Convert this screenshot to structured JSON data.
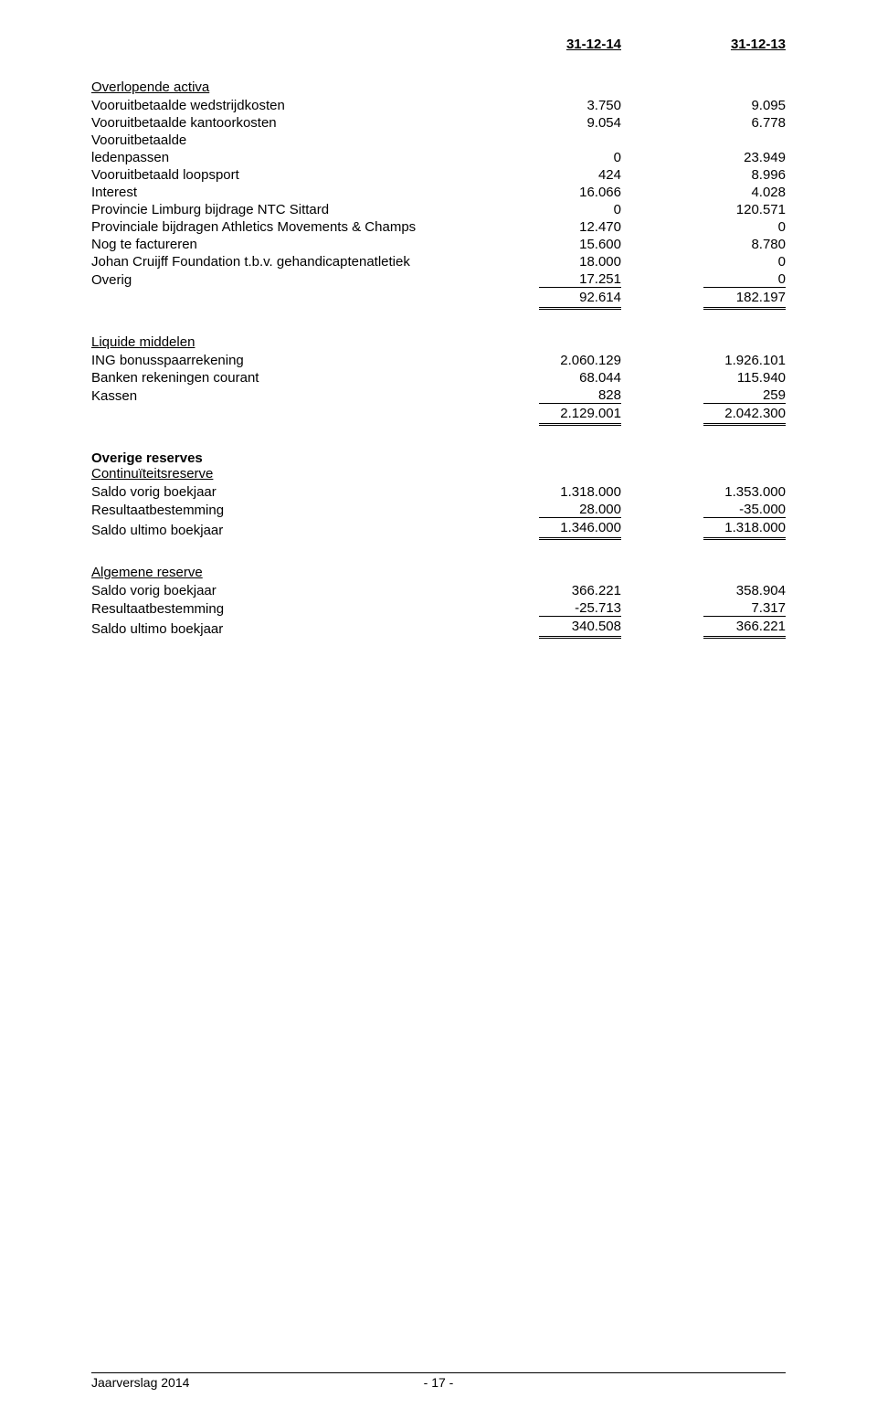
{
  "header": {
    "col1": "31-12-14",
    "col2": "31-12-13"
  },
  "s1": {
    "title": "Overlopende activa",
    "rows": [
      {
        "label": "Vooruitbetaalde wedstrijdkosten",
        "v1": "3.750",
        "v2": "9.095"
      },
      {
        "label": "Vooruitbetaalde kantoorkosten",
        "v1": "9.054",
        "v2": "6.778"
      },
      {
        "label": "Vooruitbetaalde",
        "v1": "",
        "v2": ""
      },
      {
        "label": "ledenpassen",
        "v1": "0",
        "v2": "23.949"
      },
      {
        "label": "Vooruitbetaald loopsport",
        "v1": "424",
        "v2": "8.996"
      },
      {
        "label": "Interest",
        "v1": "16.066",
        "v2": "4.028"
      },
      {
        "label": "Provincie Limburg bijdrage NTC Sittard",
        "v1": "0",
        "v2": "120.571"
      },
      {
        "label": "Provinciale bijdragen Athletics Movements & Champs",
        "v1": "12.470",
        "v2": "0"
      },
      {
        "label": "Nog te factureren",
        "v1": "15.600",
        "v2": "8.780"
      },
      {
        "label": "Johan Cruijff Foundation t.b.v. gehandicaptenatletiek",
        "v1": "18.000",
        "v2": "0"
      },
      {
        "label": "Overig",
        "v1": "17.251",
        "v2": "0"
      }
    ],
    "total": {
      "v1": "92.614",
      "v2": "182.197"
    }
  },
  "s2": {
    "title": "Liquide middelen",
    "rows": [
      {
        "label": "ING bonusspaarrekening",
        "v1": "2.060.129",
        "v2": "1.926.101"
      },
      {
        "label": "Banken rekeningen courant",
        "v1": "68.044",
        "v2": "115.940"
      },
      {
        "label": "Kassen",
        "v1": "828",
        "v2": "259"
      }
    ],
    "total": {
      "v1": "2.129.001",
      "v2": "2.042.300"
    }
  },
  "s3": {
    "heading": "Overige reserves",
    "title": "Continuïteitsreserve",
    "rows": [
      {
        "label": "Saldo vorig boekjaar",
        "v1": "1.318.000",
        "v2": "1.353.000"
      },
      {
        "label": "Resultaatbestemming",
        "v1": "28.000",
        "v2": "-35.000"
      }
    ],
    "totalLabel": "Saldo ultimo boekjaar",
    "total": {
      "v1": "1.346.000",
      "v2": "1.318.000"
    }
  },
  "s4": {
    "title": "Algemene reserve",
    "rows": [
      {
        "label": "Saldo vorig boekjaar",
        "v1": "366.221",
        "v2": "358.904"
      },
      {
        "label": "Resultaatbestemming",
        "v1": "-25.713",
        "v2": "7.317"
      }
    ],
    "totalLabel": "Saldo ultimo boekjaar",
    "total": {
      "v1": "340.508",
      "v2": "366.221"
    }
  },
  "footer": {
    "left": "Jaarverslag 2014",
    "page": "- 17 -"
  }
}
